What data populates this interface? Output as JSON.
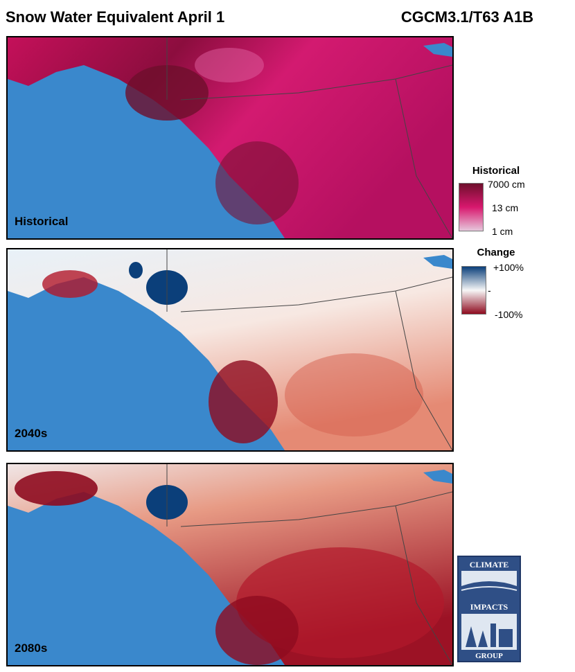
{
  "header": {
    "title": "Snow Water Equivalent April 1",
    "model": "CGCM3.1/T63 A1B"
  },
  "panels": [
    {
      "label": "Historical",
      "scheme": "historical"
    },
    {
      "label": "2040s",
      "scheme": "change_mid"
    },
    {
      "label": "2080s",
      "scheme": "change_late"
    }
  ],
  "legend_historical": {
    "title": "Historical",
    "ticks": [
      "7000 cm",
      "13 cm",
      "1 cm"
    ],
    "colors": [
      "#6e0f2c",
      "#d8186e",
      "#e6c7dc"
    ]
  },
  "legend_change": {
    "title": "Change",
    "ticks": [
      "+100%",
      "-",
      "-100%"
    ],
    "colors": [
      "#0b3f7a",
      "#f7f7f7",
      "#8e0b1f"
    ]
  },
  "logo": {
    "top_text": "CLIMATE",
    "middle_text": "IMPACTS",
    "bottom_text": "GROUP"
  },
  "colors": {
    "ocean": "#3a88cc",
    "border_lines": "#444444"
  }
}
